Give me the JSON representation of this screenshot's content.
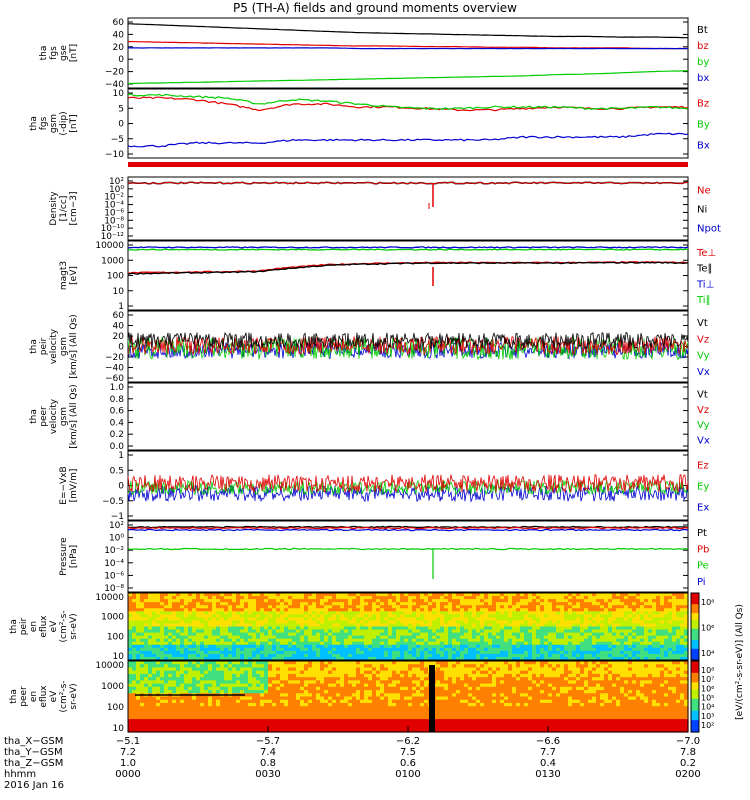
{
  "title": "P5 (TH-A) fields and ground moments overview",
  "colors": {
    "black": "#000000",
    "red": "#e00000",
    "green": "#00cc00",
    "blue": "#0000d0"
  },
  "chart_data": [
    {
      "type": "line",
      "ylabel": [
        "tha",
        "fgs",
        "gse",
        "[nT]"
      ],
      "yticks": [
        "60",
        "40",
        "20",
        "0",
        "−20",
        "−40"
      ],
      "ylim": [
        -45,
        65
      ],
      "series": [
        {
          "name": "Bt",
          "color": "#000000",
          "values": [
            56,
            54,
            52,
            50,
            48,
            46,
            44,
            42,
            41,
            40,
            39,
            38,
            37,
            36,
            36,
            35,
            35,
            34
          ]
        },
        {
          "name": "bz",
          "color": "#e00000",
          "values": [
            28,
            27,
            26,
            25,
            24,
            23,
            22,
            21,
            21,
            20,
            20,
            19,
            19,
            18,
            18,
            18,
            17,
            17
          ]
        },
        {
          "name": "by",
          "color": "#00cc00",
          "values": [
            -38,
            -37,
            -36,
            -35,
            -34,
            -33,
            -32,
            -31,
            -30,
            -29,
            -28,
            -27,
            -26,
            -24,
            -23,
            -21,
            -19,
            -18
          ]
        },
        {
          "name": "bx",
          "color": "#0000d0",
          "values": [
            18,
            18,
            18,
            18,
            18,
            18,
            18,
            17,
            17,
            17,
            17,
            17,
            17,
            17,
            17,
            17,
            17,
            17
          ]
        }
      ]
    },
    {
      "type": "line",
      "ylabel": [
        "tha",
        "fgs",
        "gsm",
        "(-dip)",
        "[nT]"
      ],
      "yticks": [
        "10",
        "5",
        "0",
        "−5",
        "−10"
      ],
      "ylim": [
        -12,
        11
      ],
      "series": [
        {
          "name": "Bz",
          "color": "#e00000",
          "values": [
            8,
            8,
            7.5,
            6,
            4,
            6,
            6,
            5,
            5,
            4.5,
            4,
            4,
            4.5,
            5,
            4.5,
            4.5,
            5,
            5
          ]
        },
        {
          "name": "By",
          "color": "#00cc00",
          "values": [
            9,
            9,
            8.5,
            8,
            6,
            7.5,
            7,
            6,
            5,
            4.5,
            4.5,
            5,
            5,
            5,
            4.5,
            4.5,
            5,
            4.5
          ]
        },
        {
          "name": "Bx",
          "color": "#0000d0",
          "values": [
            -8,
            -8,
            -7,
            -7,
            -7,
            -6,
            -6,
            -6,
            -6,
            -6,
            -6,
            -6,
            -5,
            -5,
            -5,
            -5,
            -4,
            -4
          ]
        }
      ]
    },
    {
      "type": "line",
      "ylabel": [
        "Density",
        "[1/cc]",
        "[cm−3]"
      ],
      "yticks": [
        "10²",
        "10⁰",
        "10⁻²",
        "10⁻⁴",
        "10⁻⁶",
        "10⁻⁸",
        "10⁻¹⁰",
        "10⁻¹²"
      ],
      "series": [
        {
          "name": "Ne",
          "color": "#e00000",
          "values": [
            1,
            1,
            1,
            1,
            1,
            1,
            1,
            1,
            1,
            1,
            1,
            1,
            1,
            1,
            1,
            1,
            1,
            1
          ]
        },
        {
          "name": "Ni",
          "color": "#000000",
          "values": []
        },
        {
          "name": "Npot",
          "color": "#0000d0",
          "values": []
        }
      ]
    },
    {
      "type": "line",
      "ylabel": [
        "magt3",
        "[eV]"
      ],
      "yticks": [
        "10000",
        "1000",
        "100",
        "10",
        "1"
      ],
      "series": [
        {
          "name": "Te⊥",
          "color": "#e00000",
          "values": [
            150,
            160,
            170,
            180,
            200,
            350,
            500,
            600,
            650,
            700,
            700,
            700,
            700,
            700,
            720,
            740,
            750,
            700
          ]
        },
        {
          "name": "Te∥",
          "color": "#000000",
          "values": [
            130,
            140,
            150,
            160,
            180,
            300,
            450,
            550,
            600,
            650,
            650,
            650,
            650,
            650,
            670,
            690,
            700,
            650
          ]
        },
        {
          "name": "Ti⊥",
          "color": "#0000d0",
          "values": [
            7000,
            7000,
            7000,
            7000,
            7000,
            7000,
            7000,
            7000,
            7000,
            7000,
            7000,
            7000,
            7000,
            7000,
            7000,
            7000,
            7000,
            7000
          ]
        },
        {
          "name": "Ti∥",
          "color": "#00cc00",
          "values": [
            5000,
            5000,
            5000,
            5000,
            5000,
            5000,
            5000,
            5000,
            5000,
            5000,
            5000,
            5000,
            5000,
            5000,
            5000,
            5000,
            5000,
            5000
          ]
        }
      ]
    },
    {
      "type": "line",
      "ylabel": [
        "tha",
        "peir",
        "velocity",
        "gsm",
        "[km/s] (All Qs)"
      ],
      "yticks": [
        "60",
        "40",
        "20",
        "0",
        "−20",
        "−40",
        "−60"
      ],
      "series": [
        {
          "name": "Vt",
          "color": "#000000",
          "values": []
        },
        {
          "name": "Vz",
          "color": "#e00000",
          "values": []
        },
        {
          "name": "Vy",
          "color": "#00cc00",
          "values": []
        },
        {
          "name": "Vx",
          "color": "#0000d0",
          "values": []
        }
      ]
    },
    {
      "type": "line",
      "ylabel": [
        "tha",
        "peer",
        "velocity",
        "gsm",
        "[km/s] (All Qs)"
      ],
      "yticks": [
        "1.0",
        "0.8",
        "0.6",
        "0.4",
        "0.2",
        "0.0"
      ],
      "series": [
        {
          "name": "Vt",
          "color": "#000000",
          "values": []
        },
        {
          "name": "Vz",
          "color": "#e00000",
          "values": []
        },
        {
          "name": "Vy",
          "color": "#00cc00",
          "values": []
        },
        {
          "name": "Vx",
          "color": "#0000d0",
          "values": []
        }
      ]
    },
    {
      "type": "line",
      "ylabel": [
        "E=−VxB",
        "[mV/m]"
      ],
      "yticks": [
        "1",
        "0.5",
        "0",
        "−0.5",
        "−1"
      ],
      "series": [
        {
          "name": "Ez",
          "color": "#e00000",
          "values": []
        },
        {
          "name": "Ey",
          "color": "#00cc00",
          "values": []
        },
        {
          "name": "Ex",
          "color": "#0000d0",
          "values": []
        }
      ]
    },
    {
      "type": "line",
      "ylabel": [
        "Pressure",
        "[nPa]"
      ],
      "yticks": [
        "10²",
        "10⁰",
        "10⁻²",
        "10⁻⁴",
        "10⁻⁶",
        "10⁻⁸"
      ],
      "series": [
        {
          "name": "Pt",
          "color": "#000000",
          "values": []
        },
        {
          "name": "Pb",
          "color": "#e00000",
          "values": []
        },
        {
          "name": "Pe",
          "color": "#00cc00",
          "values": []
        },
        {
          "name": "Pi",
          "color": "#0000d0",
          "values": []
        }
      ]
    },
    {
      "type": "heatmap",
      "ylabel": [
        "tha",
        "peir",
        "en",
        "eflux",
        "eV",
        "(cm²-s-",
        "sr-eV)"
      ],
      "yticks": [
        "10000",
        "1000",
        "100",
        "10"
      ]
    },
    {
      "type": "heatmap",
      "ylabel": [
        "tha",
        "peer",
        "en",
        "eflux",
        "eV",
        "(cm²-s-",
        "sr-eV)"
      ],
      "yticks": [
        "10000",
        "1000",
        "100",
        "10"
      ]
    }
  ],
  "colorbar": {
    "label": "[eV/(cm²-s-sr-eV)] (All Qs)",
    "ticks_top": [
      "10⁸",
      "10⁶",
      "10⁴"
    ],
    "ticks_bottom": [
      "10⁸",
      "10⁷",
      "10⁶",
      "10⁵",
      "10⁴",
      "10³",
      "10²"
    ]
  },
  "x_axis": {
    "row_labels": [
      "tha_X−GSM",
      "tha_Y−GSM",
      "tha_Z−GSM",
      "hhmm",
      "2016 Jan 16"
    ],
    "columns": [
      {
        "x": "−5.1",
        "y": "7.2",
        "z": "1.0",
        "t": "0000"
      },
      {
        "x": "−5.7",
        "y": "7.4",
        "z": "0.8",
        "t": "0030"
      },
      {
        "x": "−6.2",
        "y": "7.5",
        "z": "0.6",
        "t": "0100"
      },
      {
        "x": "−6.6",
        "y": "7.7",
        "z": "0.4",
        "t": "0130"
      },
      {
        "x": "−7.0",
        "y": "7.8",
        "z": "0.2",
        "t": "0200"
      }
    ]
  }
}
